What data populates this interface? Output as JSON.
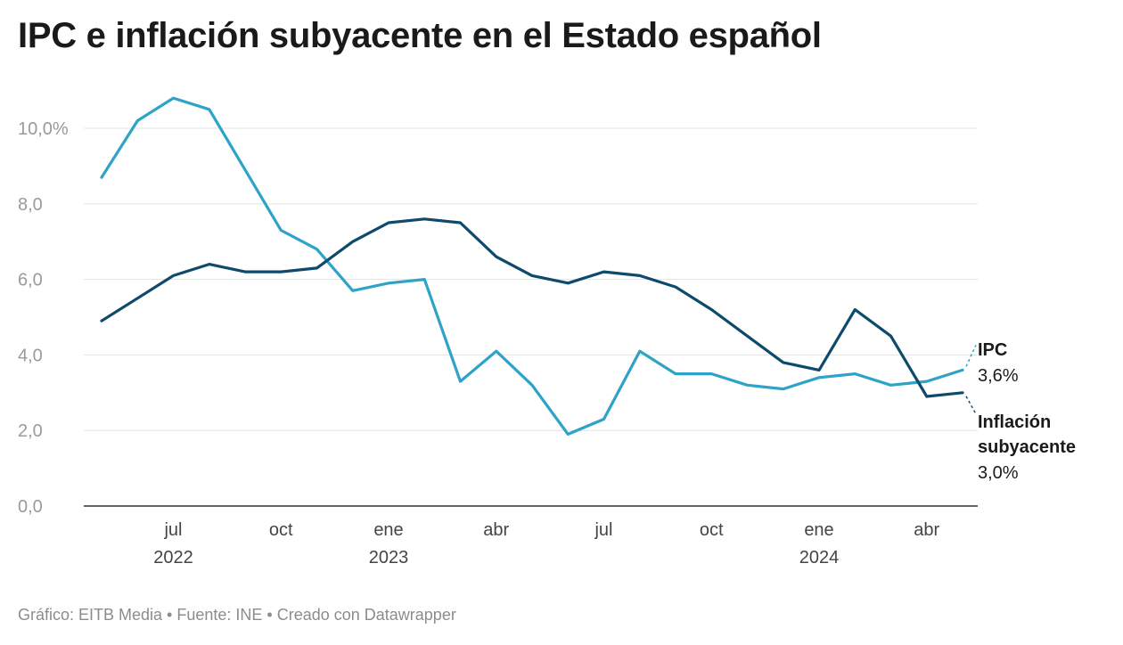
{
  "title": "IPC e inflación subyacente en el Estado español",
  "footer": "Gráfico: EITB Media • Fuente: INE • Creado con Datawrapper",
  "chart_data": {
    "type": "line",
    "title": "IPC e inflación subyacente en el Estado español",
    "xlabel": "",
    "ylabel": "",
    "ylim": [
      0,
      10.8
    ],
    "yticks": [
      0,
      2,
      4,
      6,
      8,
      10
    ],
    "ytick_labels": [
      "0,0",
      "2,0",
      "4,0",
      "6,0",
      "8,0",
      "10,0%"
    ],
    "x": [
      "2022-05",
      "2022-06",
      "2022-07",
      "2022-08",
      "2022-09",
      "2022-10",
      "2022-11",
      "2022-12",
      "2023-01",
      "2023-02",
      "2023-03",
      "2023-04",
      "2023-05",
      "2023-06",
      "2023-07",
      "2023-08",
      "2023-09",
      "2023-10",
      "2023-11",
      "2023-12",
      "2024-01",
      "2024-02",
      "2024-03",
      "2024-04",
      "2024-05"
    ],
    "xticks": [
      {
        "index": 2,
        "label": "jul",
        "year": "2022"
      },
      {
        "index": 5,
        "label": "oct",
        "year": ""
      },
      {
        "index": 8,
        "label": "ene",
        "year": "2023"
      },
      {
        "index": 11,
        "label": "abr",
        "year": ""
      },
      {
        "index": 14,
        "label": "jul",
        "year": ""
      },
      {
        "index": 17,
        "label": "oct",
        "year": ""
      },
      {
        "index": 20,
        "label": "ene",
        "year": "2024"
      },
      {
        "index": 23,
        "label": "abr",
        "year": ""
      }
    ],
    "series": [
      {
        "name": "IPC",
        "color": "#2ea3c8",
        "values": [
          8.7,
          10.2,
          10.8,
          10.5,
          8.9,
          7.3,
          6.8,
          5.7,
          5.9,
          6.0,
          3.3,
          4.1,
          3.2,
          1.9,
          2.3,
          4.1,
          3.5,
          3.5,
          3.2,
          3.1,
          3.4,
          3.5,
          3.2,
          3.3,
          3.6
        ],
        "end_label": {
          "name": "IPC",
          "value": "3,6%"
        }
      },
      {
        "name": "Inflación subyacente",
        "color": "#0e4a6b",
        "values": [
          4.9,
          5.5,
          6.1,
          6.4,
          6.2,
          6.2,
          6.3,
          7.0,
          7.5,
          7.6,
          7.5,
          6.6,
          6.1,
          5.9,
          6.2,
          6.1,
          5.8,
          5.2,
          4.5,
          3.8,
          3.6,
          5.2,
          4.5,
          2.9,
          3.0
        ],
        "end_label": {
          "name_lines": [
            "Inflación",
            "subyacente"
          ],
          "value": "3,0%"
        }
      }
    ]
  }
}
